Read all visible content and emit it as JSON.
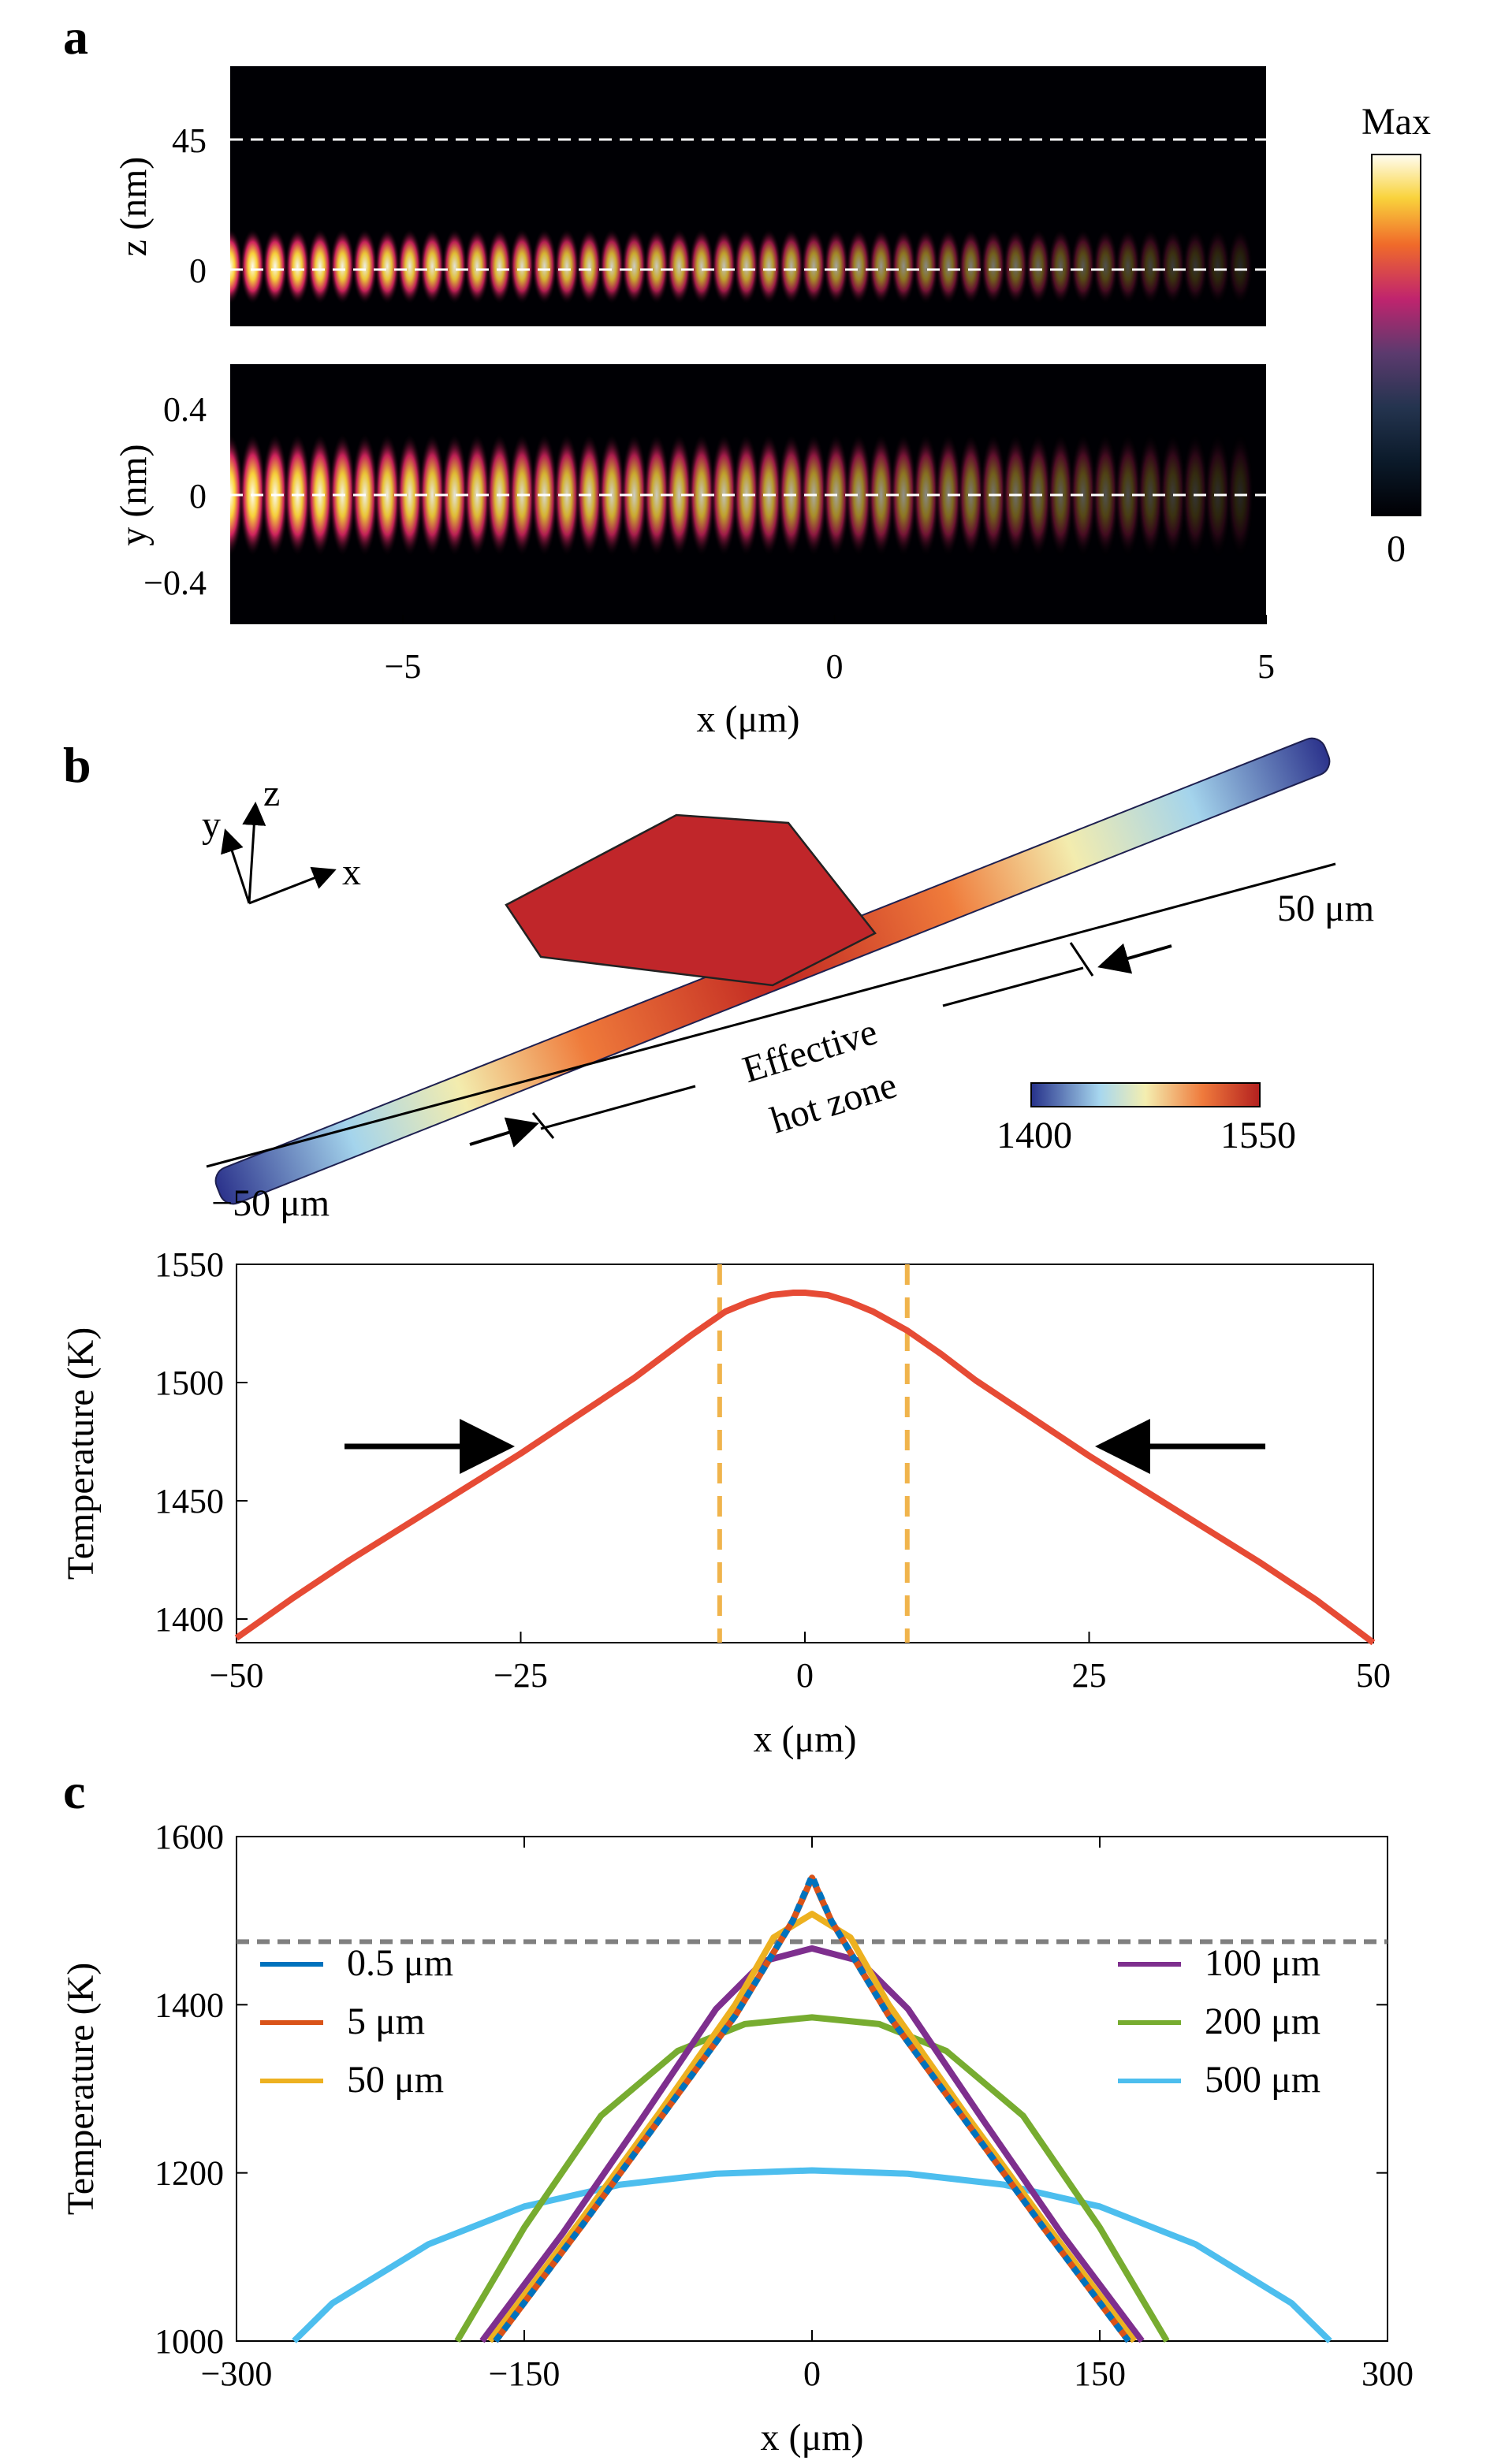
{
  "panel_letters": [
    "a",
    "b",
    "c"
  ],
  "colors": {
    "inferno_hot": "#fff7b0",
    "red_line": "#e64b35",
    "orange_dash": "#f0b44c",
    "grey_dash": "#808080"
  },
  "chart_data": [
    {
      "id": "a-top",
      "type": "heatmap",
      "ylabel": "z (nm)",
      "yticks": [
        "45",
        "0"
      ],
      "ytick_values": [
        45,
        0
      ],
      "xlim": [
        -7,
        5
      ],
      "ylim": [
        -20,
        70
      ],
      "dashed_lines_y": [
        45,
        0
      ],
      "description_values": {
        "peak_y": 0,
        "decay_length_um": 5
      }
    },
    {
      "id": "a-bottom",
      "type": "heatmap",
      "ylabel": "y (nm)",
      "xlabel": "x (μm)",
      "yticks": [
        "0.4",
        "0",
        "−0.4"
      ],
      "ytick_values": [
        0.4,
        0,
        -0.4
      ],
      "xticks": [
        "−5",
        "0",
        "5"
      ],
      "xtick_values": [
        -5,
        0,
        5
      ],
      "xlim": [
        -7,
        5
      ],
      "ylim": [
        -0.6,
        0.6
      ],
      "dashed_lines_y": [
        0
      ],
      "colorbar": {
        "max_label": "Max",
        "min_label": "0"
      }
    },
    {
      "id": "b-3d",
      "type": "diagram",
      "axis_labels": [
        "y",
        "z",
        "x"
      ],
      "label_left": "−50 μm",
      "label_right": "50 μm",
      "zone_label_1": "Effective",
      "zone_label_2": "hot zone",
      "colorbar": {
        "min_label": "1400",
        "max_label": "1550",
        "min": 1400,
        "max": 1550
      }
    },
    {
      "id": "b-line",
      "type": "line",
      "xlabel": "x (μm)",
      "ylabel": "Temperature (K)",
      "xlim": [
        -50,
        50
      ],
      "ylim": [
        1390,
        1550
      ],
      "xticks": [
        "−50",
        "−25",
        "0",
        "25",
        "50"
      ],
      "xtick_values": [
        -50,
        -25,
        0,
        25,
        50
      ],
      "yticks": [
        "1550",
        "1500",
        "1450",
        "1400"
      ],
      "ytick_values": [
        1550,
        1500,
        1450,
        1400
      ],
      "x": [
        -50,
        -45,
        -40,
        -35,
        -30,
        -25,
        -20,
        -15,
        -10,
        -7,
        -5,
        -3,
        -1,
        0,
        2,
        4,
        6,
        9,
        12,
        15,
        20,
        25,
        30,
        35,
        40,
        45,
        50
      ],
      "series": [
        {
          "values": [
            1392,
            1409,
            1425,
            1440,
            1455,
            1470,
            1486,
            1502,
            1520,
            1530,
            1534,
            1537,
            1538,
            1538,
            1537,
            1534,
            1530,
            1522,
            1512,
            1501,
            1485,
            1469,
            1454,
            1439,
            1424,
            1408,
            1390
          ]
        }
      ],
      "vlines": [
        -7.5,
        9
      ],
      "arrows_at": [
        -26,
        26
      ],
      "arrow_y": 1473
    },
    {
      "id": "c",
      "type": "line",
      "xlabel": "x (μm)",
      "ylabel": "Temperature (K)",
      "xlim": [
        -300,
        300
      ],
      "ylim": [
        1000,
        1600
      ],
      "xticks": [
        "−300",
        "−150",
        "0",
        "150",
        "300"
      ],
      "xtick_values": [
        -300,
        -150,
        0,
        150,
        300
      ],
      "yticks": [
        "1600",
        "1400",
        "1200",
        "1000"
      ],
      "ytick_values": [
        1600,
        1400,
        1200,
        1000
      ],
      "hline": 1475,
      "series": [
        {
          "name": "0.5 μm",
          "color": "#0072bd",
          "dashed": true,
          "x": [
            -165,
            -120,
            -80,
            -40,
            -10,
            0,
            10,
            40,
            80,
            120,
            165
          ],
          "values": [
            1000,
            1137,
            1262,
            1387,
            1500,
            1553,
            1500,
            1387,
            1262,
            1137,
            1000
          ]
        },
        {
          "name": "5 μm",
          "color": "#d95319",
          "x": [
            -165,
            -120,
            -80,
            -40,
            -10,
            0,
            10,
            40,
            80,
            120,
            165
          ],
          "values": [
            1000,
            1137,
            1262,
            1387,
            1500,
            1551,
            1500,
            1387,
            1262,
            1137,
            1000
          ]
        },
        {
          "name": "50 μm",
          "color": "#edb120",
          "x": [
            -168,
            -120,
            -80,
            -40,
            -20,
            0,
            20,
            40,
            80,
            120,
            168
          ],
          "values": [
            1000,
            1145,
            1270,
            1400,
            1480,
            1508,
            1480,
            1400,
            1270,
            1145,
            1000
          ]
        },
        {
          "name": "100 μm",
          "color": "#7e2f8e",
          "x": [
            -172,
            -130,
            -90,
            -50,
            -25,
            0,
            25,
            50,
            90,
            130,
            172
          ],
          "values": [
            1000,
            1128,
            1260,
            1395,
            1452,
            1467,
            1452,
            1395,
            1260,
            1128,
            1000
          ]
        },
        {
          "name": "200 μm",
          "color": "#77ac30",
          "x": [
            -185,
            -150,
            -110,
            -70,
            -35,
            0,
            35,
            70,
            110,
            150,
            185
          ],
          "values": [
            1000,
            1135,
            1268,
            1345,
            1377,
            1385,
            1377,
            1345,
            1268,
            1135,
            1000
          ]
        },
        {
          "name": "500 μm",
          "color": "#4dbeee",
          "x": [
            -270,
            -250,
            -200,
            -150,
            -100,
            -50,
            0,
            50,
            100,
            150,
            200,
            250,
            270
          ],
          "values": [
            1000,
            1045,
            1115,
            1160,
            1186,
            1199,
            1203,
            1199,
            1186,
            1160,
            1115,
            1045,
            1000
          ]
        }
      ],
      "legend_left": [
        "0.5 μm",
        "5 μm",
        "50 μm"
      ],
      "legend_right": [
        "100 μm",
        "200 μm",
        "500 μm"
      ]
    }
  ]
}
